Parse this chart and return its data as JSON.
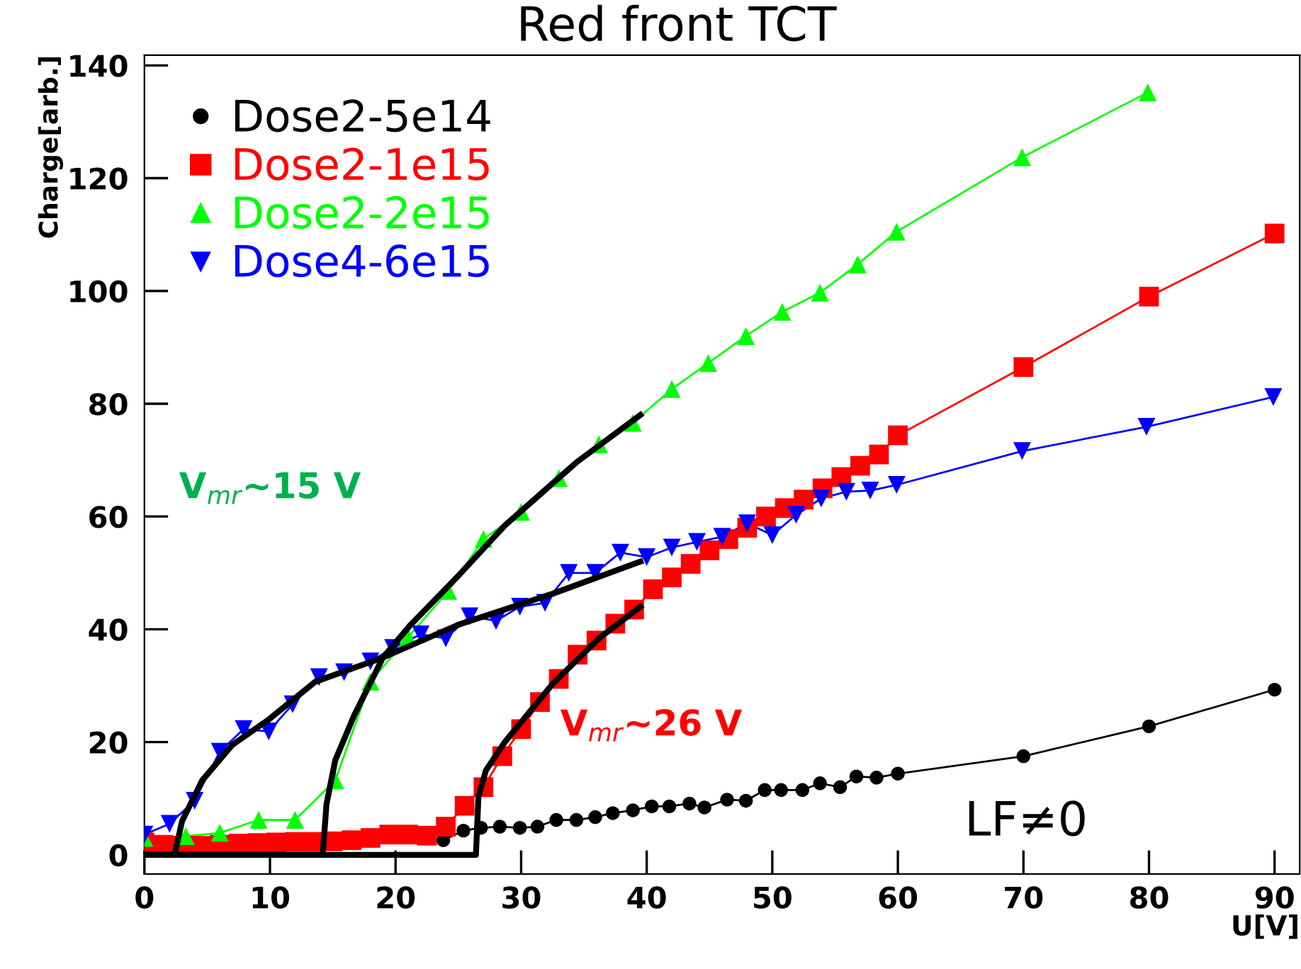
{
  "chart_data": {
    "type": "line",
    "title": "Red front TCT",
    "xlabel": "U[V]",
    "ylabel": "Charge[arb.]",
    "xlim": [
      0,
      92
    ],
    "ylim": [
      -3.4,
      141.8
    ],
    "xticks": [
      0,
      10,
      20,
      30,
      40,
      50,
      60,
      70,
      80,
      90
    ],
    "yticks": [
      0,
      20,
      40,
      60,
      80,
      100,
      120,
      140
    ],
    "grid": false,
    "legend": "top left",
    "annotations": [
      "V$_{mr}$~15 V",
      "V$_{mr}$~26 V",
      "LF≠0"
    ],
    "series": [
      {
        "name": "Dose2-5e14",
        "color": "#000000",
        "marker": "circle",
        "x": [
          23.8,
          25.4,
          26.8,
          28.3,
          29.9,
          31.3,
          32.8,
          34.4,
          35.9,
          37.3,
          38.9,
          40.4,
          41.8,
          43.4,
          44.6,
          46.4,
          47.9,
          49.4,
          50.7,
          52.4,
          53.8,
          55.4,
          56.7,
          58.3,
          60,
          70,
          80,
          90
        ],
        "values": [
          2.6,
          4.3,
          4.8,
          5,
          4.8,
          5,
          6.2,
          6.2,
          6.7,
          7.4,
          7.9,
          8.6,
          8.6,
          9.1,
          8.4,
          9.8,
          9.6,
          11.5,
          11.5,
          11.5,
          12.7,
          12,
          13.9,
          13.7,
          14.4,
          17.5,
          22.8,
          29.3
        ]
      },
      {
        "name": "Dose2-1e15",
        "color": "#ff0000",
        "marker": "square",
        "x": [
          0,
          1.5,
          3,
          4.5,
          6,
          7.5,
          9,
          10.5,
          12,
          13.5,
          15,
          16.5,
          18,
          19.5,
          21,
          22.5,
          24,
          25.5,
          27,
          28.5,
          30,
          31.5,
          33,
          34.5,
          36,
          37.5,
          39,
          40.5,
          42,
          43.5,
          45,
          46.5,
          48,
          49.5,
          51,
          52.5,
          54,
          55.5,
          57,
          58.5,
          60,
          70,
          80,
          90
        ],
        "values": [
          2.2,
          1.8,
          1.6,
          1.6,
          1.8,
          2,
          2.1,
          2.2,
          2.3,
          2.3,
          2.4,
          2.6,
          3,
          3.6,
          3.6,
          3.4,
          5,
          8.7,
          12,
          17.5,
          22.3,
          27.1,
          31.2,
          35.5,
          38,
          41,
          43.5,
          47.1,
          49.2,
          51.6,
          54,
          56,
          58,
          60,
          61.5,
          63,
          65,
          67,
          69,
          71,
          74.4,
          86.5,
          99,
          110.2
        ]
      },
      {
        "name": "Dose2-2e15",
        "color": "#00ff00",
        "marker": "triangle",
        "x": [
          0,
          3.3,
          6,
          9.1,
          12,
          15.2,
          18,
          21,
          24.2,
          27,
          30,
          33,
          36.2,
          38.9,
          42,
          44.9,
          47.9,
          50.8,
          53.8,
          56.8,
          59.9,
          69.9,
          79.9
        ],
        "values": [
          3,
          3.3,
          3.9,
          6.2,
          6.2,
          13.2,
          30.7,
          38.6,
          46.8,
          56,
          60.8,
          66.8,
          72.8,
          76.6,
          82.6,
          87.2,
          92,
          96.3,
          99.7,
          104.7,
          110.5,
          123.7,
          135.2
        ]
      },
      {
        "name": "Dose4-6e15",
        "color": "#0000ff",
        "marker": "triangle_down",
        "x": [
          0,
          2,
          4,
          6,
          7.9,
          9.9,
          11.8,
          13.9,
          15.9,
          18,
          19.8,
          22,
          24,
          25.9,
          28,
          29.9,
          31.9,
          33.8,
          35.9,
          37.9,
          40,
          42,
          44,
          46,
          48,
          50,
          51.9,
          53.9,
          55.9,
          57.8,
          59.9,
          69.9,
          79.8,
          89.9
        ],
        "values": [
          3.6,
          5.5,
          9.6,
          18.3,
          22.3,
          21.9,
          26.7,
          31.5,
          32.4,
          34.3,
          36.7,
          39.1,
          38.4,
          42.3,
          41.5,
          44,
          44.7,
          50,
          50,
          53.6,
          52.8,
          54.5,
          55.5,
          56.4,
          58.8,
          56.7,
          60.3,
          63.2,
          64.4,
          64.6,
          65.6,
          71.6,
          75.9,
          81.2
        ]
      },
      {
        "color": "#000000",
        "marker": "none",
        "x": [
          0,
          2.4,
          3,
          4.6,
          7,
          9.9,
          13.6,
          19,
          25,
          32.5,
          39.5
        ],
        "values": [
          0,
          0,
          6,
          13.2,
          19.5,
          24,
          30.7,
          35,
          40.8,
          46.3,
          52
        ]
      },
      {
        "color": "#000000",
        "marker": "none",
        "x": [
          0,
          14.2,
          14.5,
          15.2,
          16.7,
          19,
          21.2,
          25,
          28.7,
          34.4,
          39.5
        ],
        "values": [
          0,
          0,
          9,
          16.8,
          24.7,
          35,
          40.8,
          49.5,
          58.4,
          69.6,
          78
        ]
      },
      {
        "color": "#000000",
        "marker": "none",
        "x": [
          0,
          26.4,
          26.6,
          27.2,
          28.7,
          32.5,
          36.2,
          39.5
        ],
        "values": [
          0,
          0,
          10.3,
          15,
          20,
          30.3,
          38.4,
          44
        ]
      }
    ]
  }
}
